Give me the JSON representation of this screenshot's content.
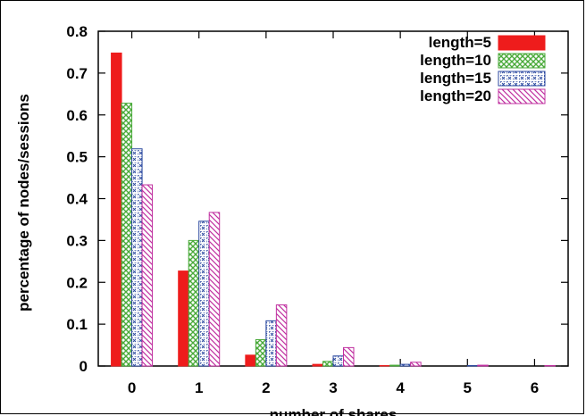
{
  "chart_data": {
    "type": "bar",
    "xlabel": "number of shares",
    "ylabel": "percentage of nodes/sessions",
    "categories": [
      "0",
      "1",
      "2",
      "3",
      "4",
      "5",
      "6"
    ],
    "ylim": [
      0,
      0.8
    ],
    "yticks": [
      "0",
      "0.1",
      "0.2",
      "0.3",
      "0.4",
      "0.5",
      "0.6",
      "0.7",
      "0.8"
    ],
    "legend_position": "top-right",
    "series": [
      {
        "name": "length=5",
        "color": "#ee1c1c",
        "pattern": "solid",
        "values": [
          0.748,
          0.227,
          0.026,
          0.004,
          0.001,
          0.0,
          0.0
        ]
      },
      {
        "name": "length=10",
        "color": "#4aaa3a",
        "pattern": "crosshatch",
        "values": [
          0.628,
          0.3,
          0.063,
          0.011,
          0.002,
          0.0,
          0.0
        ]
      },
      {
        "name": "length=15",
        "color": "#2c4aa0",
        "pattern": "dotted-grid",
        "values": [
          0.519,
          0.346,
          0.108,
          0.024,
          0.004,
          0.001,
          0.0
        ]
      },
      {
        "name": "length=20",
        "color": "#c030a0",
        "pattern": "diagonal",
        "values": [
          0.433,
          0.367,
          0.146,
          0.044,
          0.009,
          0.002,
          0.001
        ]
      }
    ]
  }
}
